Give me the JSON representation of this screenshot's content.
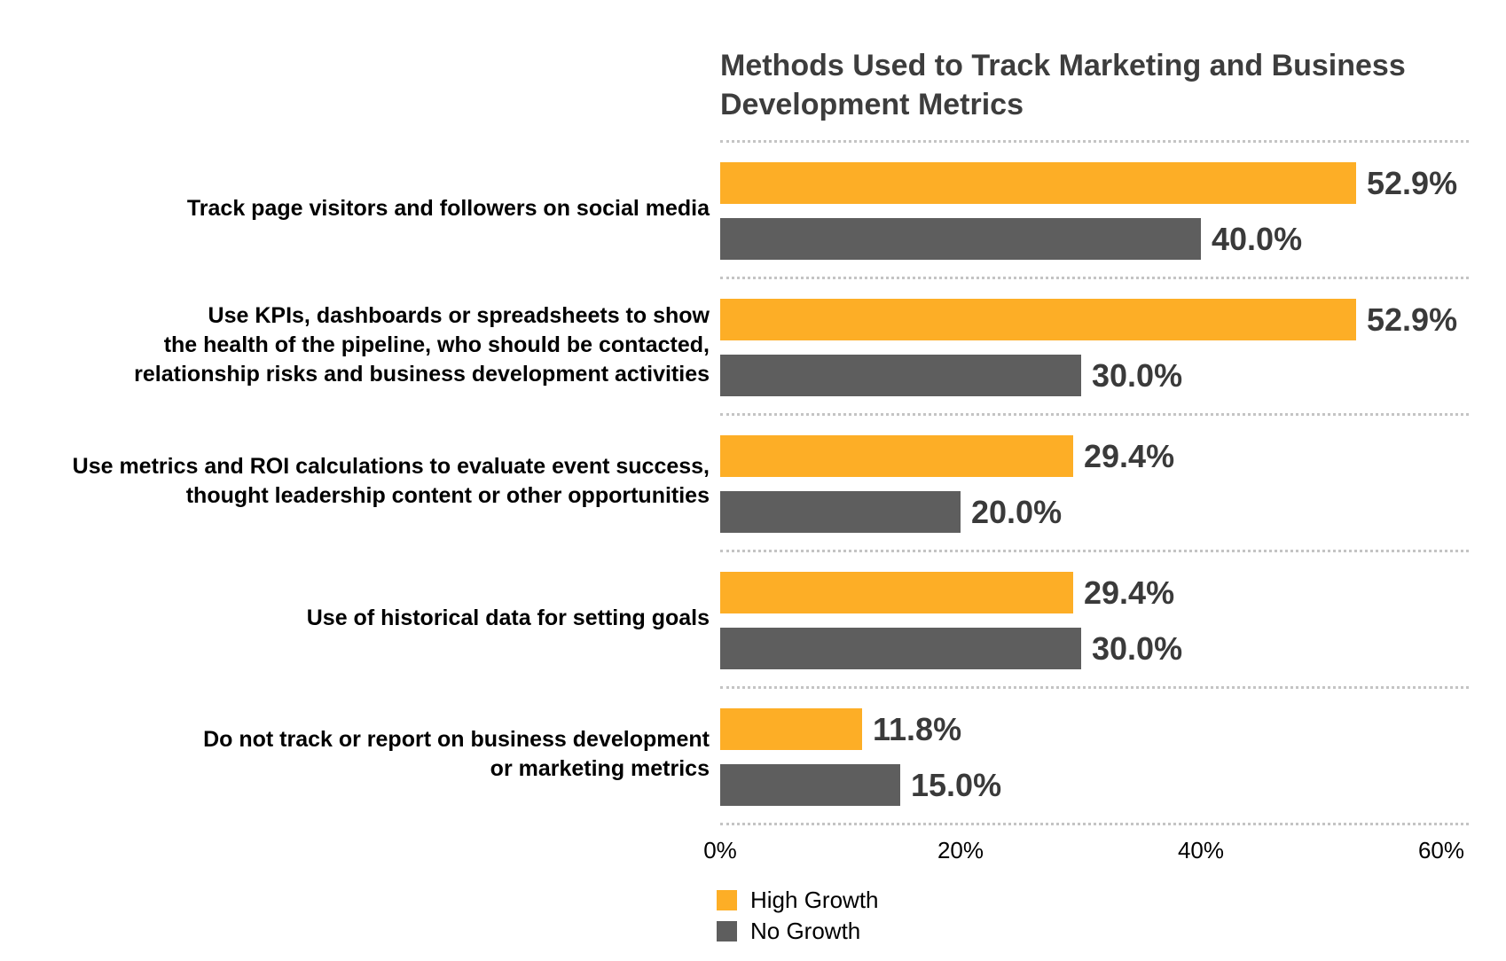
{
  "chart_data": {
    "type": "bar",
    "orientation": "horizontal-grouped",
    "title": "Methods Used to Track Marketing and Business Development Metrics",
    "title_lines": [
      "Methods Used to Track Marketing and Business",
      "Development Metrics"
    ],
    "categories": [
      {
        "lines": [
          "Track page visitors and followers on social media"
        ]
      },
      {
        "lines": [
          "Use KPIs, dashboards or spreadsheets to show",
          "the health of the pipeline, who should be contacted,",
          "relationship risks and business development activities"
        ]
      },
      {
        "lines": [
          "Use metrics and ROI calculations to evaluate event success,",
          "thought leadership content or other opportunities"
        ]
      },
      {
        "lines": [
          "Use of historical data for setting goals"
        ]
      },
      {
        "lines": [
          "Do not track or report on business development",
          "or marketing metrics"
        ]
      }
    ],
    "series": [
      {
        "name": "High Growth",
        "color": "#FDAE26",
        "values": [
          52.9,
          52.9,
          29.4,
          29.4,
          11.8
        ],
        "labels": [
          "52.9%",
          "52.9%",
          "29.4%",
          "29.4%",
          "11.8%"
        ]
      },
      {
        "name": "No Growth",
        "color": "#5E5E5E",
        "values": [
          40.0,
          30.0,
          20.0,
          30.0,
          15.0
        ],
        "labels": [
          "40.0%",
          "30.0%",
          "20.0%",
          "30.0%",
          "15.0%"
        ]
      }
    ],
    "x_axis": {
      "min": 0,
      "max": 60,
      "tick_values": [
        0,
        20,
        40,
        60
      ],
      "tick_labels": [
        "0%",
        "20%",
        "40%",
        "60%"
      ]
    },
    "legend": {
      "position": "bottom-left",
      "entries": [
        {
          "label": "High Growth",
          "color": "#FDAE26"
        },
        {
          "label": "No Growth",
          "color": "#5E5E5E"
        }
      ]
    },
    "grid": "dotted row separators between category groups, dotted baseline above axis labels"
  },
  "colors": {
    "background": "#FFFFFF",
    "high_growth_bar": "#FDAE26",
    "no_growth_bar": "#5E5E5E",
    "title_text": "#3D3D3D",
    "value_label_text": "#3A3A3A",
    "category_text": "#000000",
    "axis_text": "#000000",
    "separator": "#C4C4C4"
  }
}
